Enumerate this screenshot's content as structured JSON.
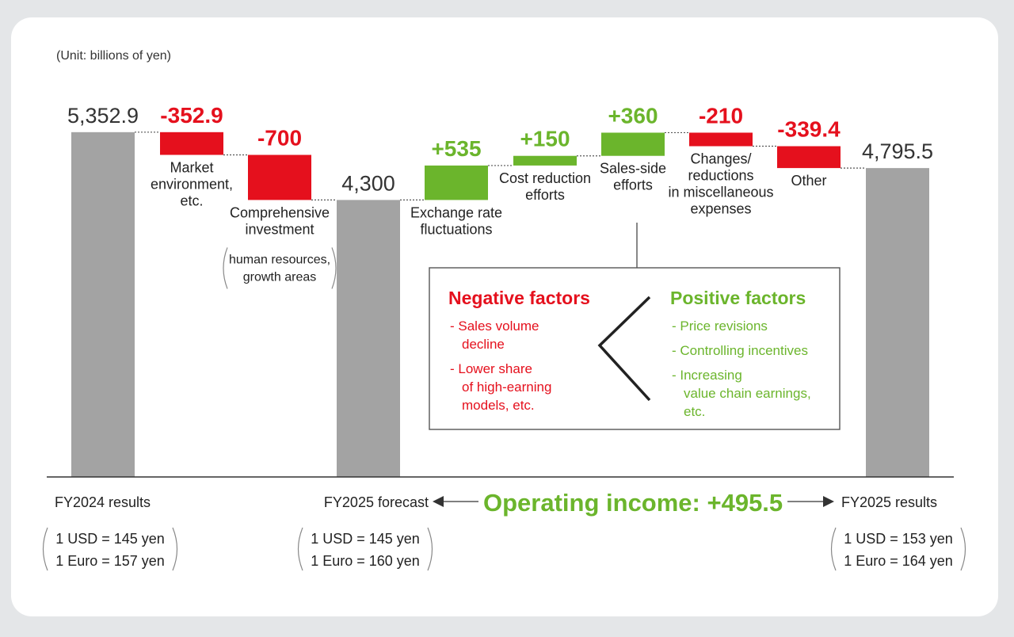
{
  "unit_label": "(Unit: billions of yen)",
  "chart_data": {
    "type": "waterfall",
    "ylim": [
      0,
      5800
    ],
    "bars": [
      {
        "kind": "total",
        "value": 5352.9,
        "value_label": "5,352.9",
        "label_lines": []
      },
      {
        "kind": "delta",
        "value": -352.9,
        "value_label": "-352.9",
        "label_lines": [
          "Market",
          "environment,",
          "etc."
        ]
      },
      {
        "kind": "delta",
        "value": -700,
        "value_label": "-700",
        "label_lines": [
          "Comprehensive",
          "investment"
        ],
        "sub_lines": [
          "human resources,",
          "growth areas"
        ]
      },
      {
        "kind": "total",
        "value": 4300,
        "value_label": "4,300",
        "label_lines": []
      },
      {
        "kind": "delta",
        "value": 535,
        "value_label": "+535",
        "label_lines": [
          "Exchange rate",
          "fluctuations"
        ]
      },
      {
        "kind": "delta",
        "value": 150,
        "value_label": "+150",
        "label_lines": [
          "Cost reduction",
          "efforts"
        ]
      },
      {
        "kind": "delta",
        "value": 360,
        "value_label": "+360",
        "label_lines": [
          "Sales-side",
          "efforts"
        ]
      },
      {
        "kind": "delta",
        "value": -210,
        "value_label": "-210",
        "label_lines": [
          "Changes/",
          "reductions",
          "in miscellaneous",
          "expenses"
        ]
      },
      {
        "kind": "delta",
        "value": -339.4,
        "value_label": "-339.4",
        "label_lines": [
          "Other"
        ]
      },
      {
        "kind": "total",
        "value": 4795.5,
        "value_label": "4,795.5",
        "label_lines": []
      }
    ],
    "colors": {
      "total": "#a3a3a3",
      "negative": "#e5101d",
      "positive": "#6bb52c"
    }
  },
  "periods": [
    {
      "label": "FY2024 results",
      "rates": [
        "1 USD = 145 yen",
        "1 Euro = 157 yen"
      ]
    },
    {
      "label": "FY2025 forecast",
      "rates": [
        "1 USD = 145 yen",
        "1 Euro = 160 yen"
      ]
    },
    {
      "label": "FY2025 results",
      "rates": [
        "1 USD = 153 yen",
        "1 Euro = 164 yen"
      ]
    }
  ],
  "operating_income": "Operating income: +495.5",
  "factors_box": {
    "negative_title": "Negative factors",
    "negative_items": [
      [
        "- Sales volume",
        "decline"
      ],
      [
        "- Lower share",
        "of high-earning",
        "models,  etc."
      ]
    ],
    "positive_title": "Positive factors",
    "positive_items": [
      [
        "- Price revisions"
      ],
      [
        "- Controlling incentives"
      ],
      [
        "- Increasing",
        "value chain earnings,",
        "etc."
      ]
    ]
  }
}
